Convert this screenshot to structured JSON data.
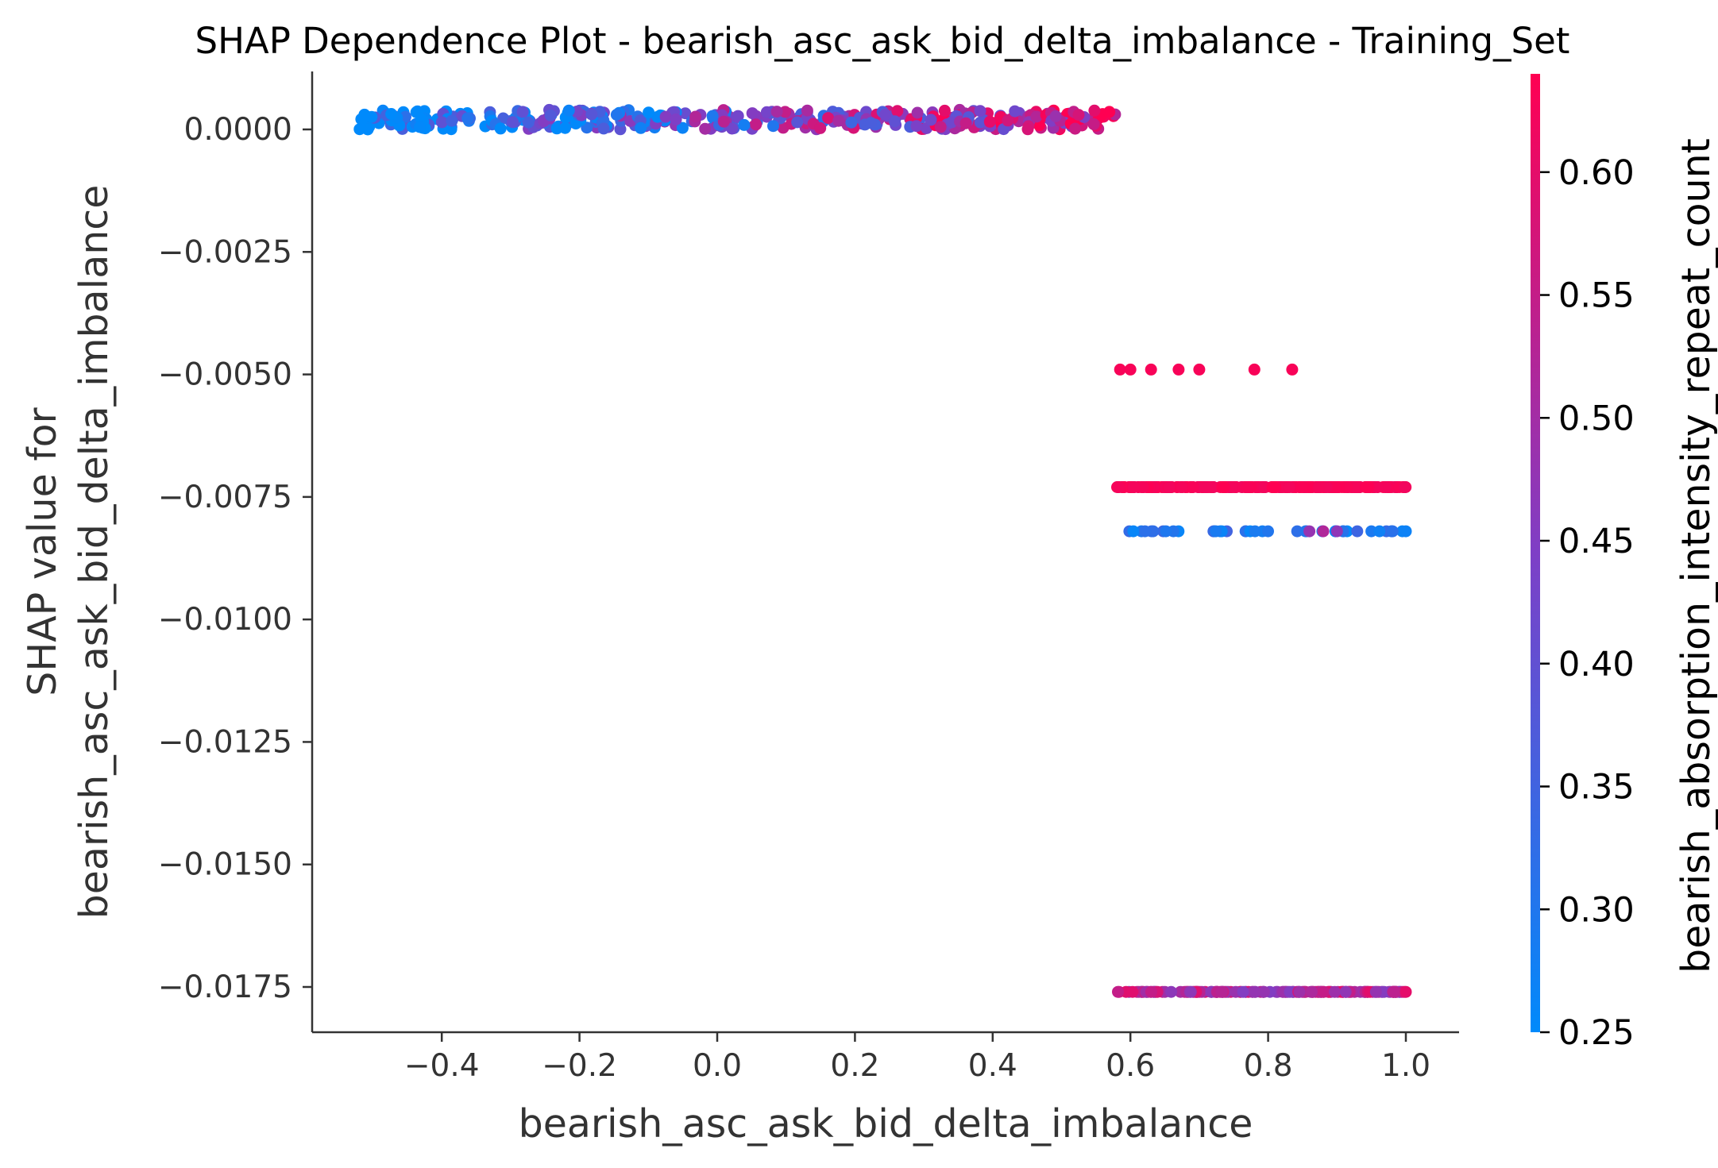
{
  "chart_data": {
    "type": "scatter",
    "title": "SHAP Dependence Plot - bearish_asc_ask_bid_delta_imbalance - Training_Set",
    "xlabel": "bearish_asc_ask_bid_delta_imbalance",
    "ylabel_line1": "SHAP value for",
    "ylabel_line2": "bearish_asc_ask_bid_delta_imbalance",
    "xlim": [
      -0.59,
      1.08
    ],
    "ylim": [
      -0.0185,
      0.0012
    ],
    "x_ticks": [
      {
        "value": -0.4,
        "label": "−0.4"
      },
      {
        "value": -0.2,
        "label": "−0.2"
      },
      {
        "value": 0.0,
        "label": "0.0"
      },
      {
        "value": 0.2,
        "label": "0.2"
      },
      {
        "value": 0.4,
        "label": "0.4"
      },
      {
        "value": 0.6,
        "label": "0.6"
      },
      {
        "value": 0.8,
        "label": "0.8"
      },
      {
        "value": 1.0,
        "label": "1.0"
      }
    ],
    "y_ticks": [
      {
        "value": 0.0,
        "label": "0.0000"
      },
      {
        "value": -0.0025,
        "label": "−0.0025"
      },
      {
        "value": -0.005,
        "label": "−0.0050"
      },
      {
        "value": -0.0075,
        "label": "−0.0075"
      },
      {
        "value": -0.01,
        "label": "−0.0100"
      },
      {
        "value": -0.0125,
        "label": "−0.0125"
      },
      {
        "value": -0.015,
        "label": "−0.0150"
      },
      {
        "value": -0.0175,
        "label": "−0.0175"
      }
    ],
    "colorbar": {
      "label": "bearish_absorption_intensity_repeat_count",
      "range": [
        0.25,
        0.64
      ],
      "color_low": "#008afb",
      "color_mid": "#7e3fc6",
      "color_high": "#ff0052",
      "ticks": [
        {
          "value": 0.25,
          "label": "0.25"
        },
        {
          "value": 0.3,
          "label": "0.30"
        },
        {
          "value": 0.35,
          "label": "0.35"
        },
        {
          "value": 0.4,
          "label": "0.40"
        },
        {
          "value": 0.45,
          "label": "0.45"
        },
        {
          "value": 0.5,
          "label": "0.50"
        },
        {
          "value": 0.55,
          "label": "0.55"
        },
        {
          "value": 0.6,
          "label": "0.60"
        }
      ]
    },
    "clusters": [
      {
        "y": 0.0002,
        "y_jitter": 0.0002,
        "x_min": -0.52,
        "x_max": 0.58,
        "color_low": 0.25,
        "color_high": 0.64,
        "note_trend": "blue-left-red-right",
        "count": 420
      },
      {
        "y": -0.0073,
        "y_jitter": 0.0,
        "x_min": 0.58,
        "x_max": 1.0,
        "color_low": 0.62,
        "color_high": 0.64,
        "count": 300
      },
      {
        "y": -0.0082,
        "y_jitter": 0.0,
        "x_min": 0.585,
        "x_max": 1.0,
        "color_low": 0.25,
        "color_high": 0.35,
        "count": 40
      },
      {
        "y": -0.0176,
        "y_jitter": 0.0,
        "x_min": 0.58,
        "x_max": 1.0,
        "color_low": 0.45,
        "color_high": 0.6,
        "count": 160
      }
    ],
    "points": [
      {
        "x": 0.585,
        "y": -0.0049,
        "c": 0.63
      },
      {
        "x": 0.6,
        "y": -0.0049,
        "c": 0.63
      },
      {
        "x": 0.63,
        "y": -0.0049,
        "c": 0.63
      },
      {
        "x": 0.67,
        "y": -0.0049,
        "c": 0.63
      },
      {
        "x": 0.7,
        "y": -0.0049,
        "c": 0.63
      },
      {
        "x": 0.78,
        "y": -0.0049,
        "c": 0.63
      },
      {
        "x": 0.835,
        "y": -0.0049,
        "c": 0.63
      },
      {
        "x": 0.86,
        "y": -0.0082,
        "c": 0.48
      },
      {
        "x": 0.88,
        "y": -0.0082,
        "c": 0.52
      },
      {
        "x": 0.9,
        "y": -0.0082,
        "c": 0.47
      },
      {
        "x": 1.0,
        "y": -0.0082,
        "c": 0.27
      },
      {
        "x": 1.0,
        "y": -0.0176,
        "c": 0.6
      }
    ]
  }
}
